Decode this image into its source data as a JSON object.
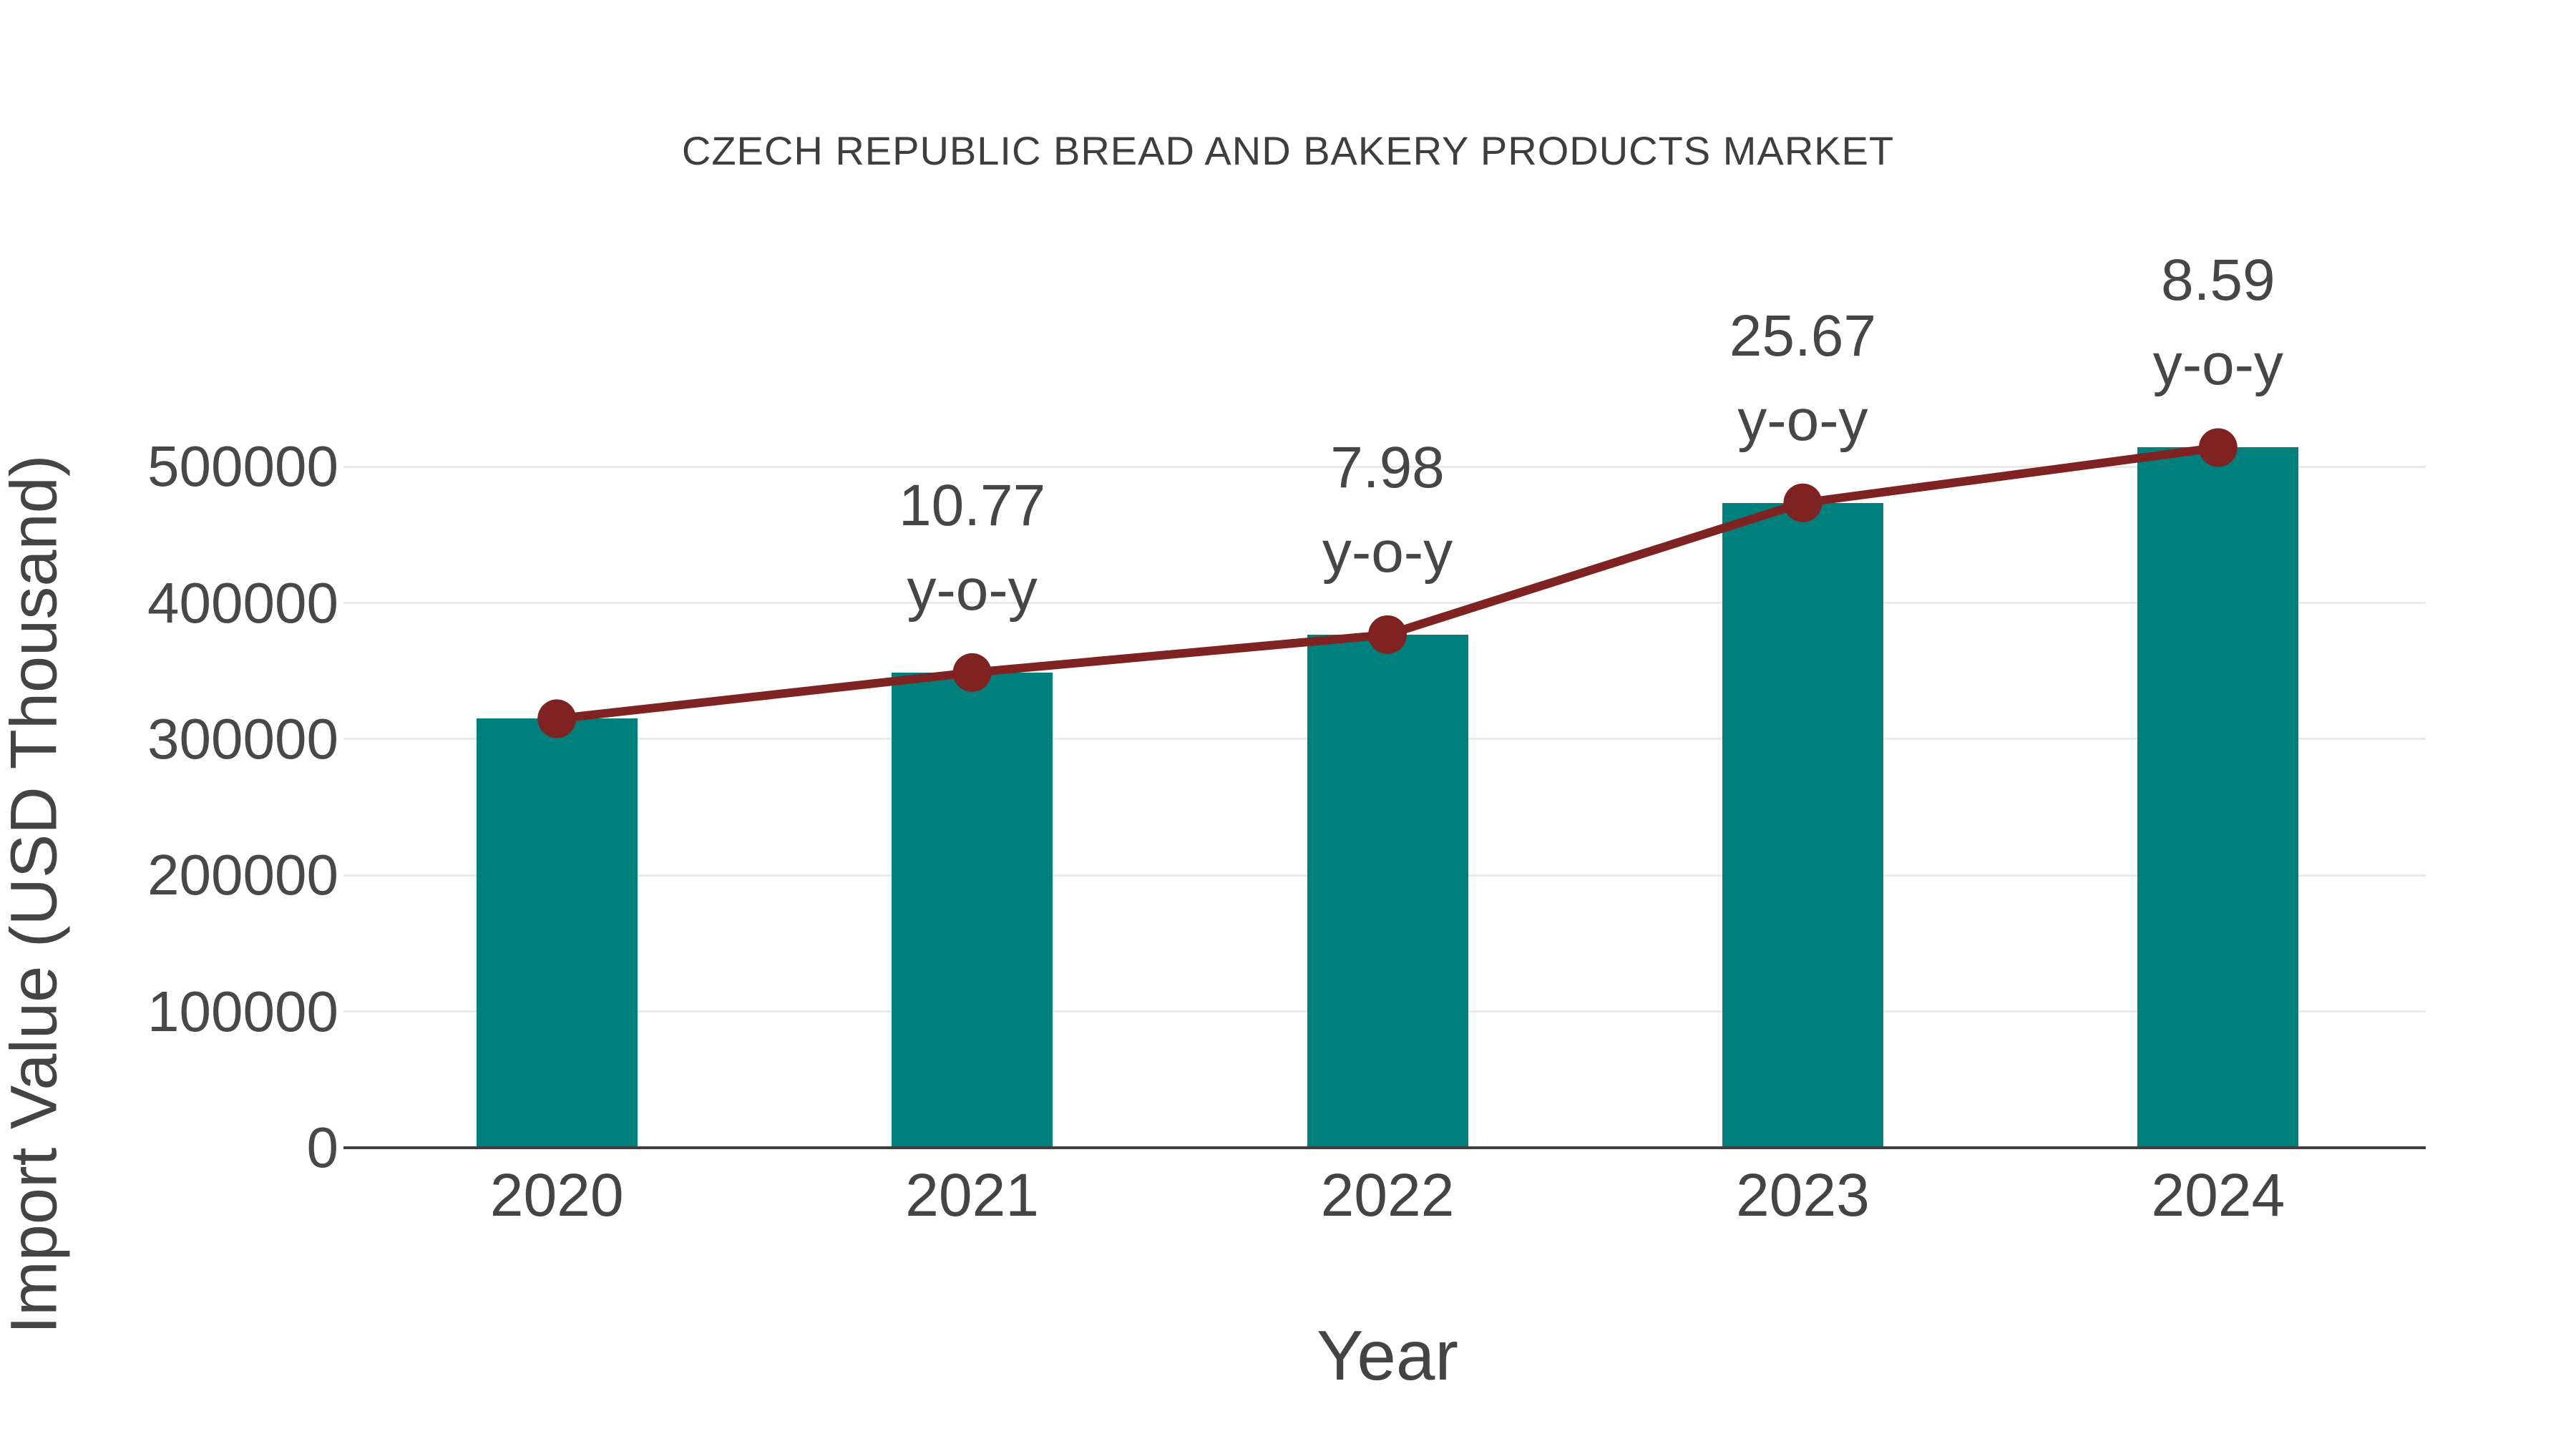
{
  "chart_data": {
    "type": "bar",
    "title": "CZECH REPUBLIC BREAD AND BAKERY PRODUCTS MARKET",
    "xlabel": "Year",
    "ylabel": "Import Value (USD Thousand)",
    "categories": [
      "2020",
      "2021",
      "2022",
      "2023",
      "2024"
    ],
    "series": [
      {
        "name": "import-value-bars",
        "type": "bar",
        "color": "#00807C",
        "values": [
          315000,
          348900,
          376700,
          473500,
          514100
        ]
      },
      {
        "name": "trend-line",
        "type": "line",
        "color": "#7E2222",
        "marker_color": "#7E2222",
        "values": [
          315000,
          348900,
          376700,
          473500,
          514100
        ]
      }
    ],
    "annotations": [
      {
        "category": "2021",
        "text_lines": [
          "10.77",
          "y-o-y"
        ]
      },
      {
        "category": "2022",
        "text_lines": [
          "7.98",
          "y-o-y"
        ]
      },
      {
        "category": "2023",
        "text_lines": [
          "25.67",
          "y-o-y"
        ]
      },
      {
        "category": "2024",
        "text_lines": [
          "8.59",
          "y-o-y"
        ]
      }
    ],
    "yticks": [
      0,
      100000,
      200000,
      300000,
      400000,
      500000
    ],
    "ylim": [
      0,
      559000
    ],
    "grid": true,
    "legend": "none",
    "grid_color": "#e9e9e9",
    "axis_color": "#3f3f3f",
    "text_color": "#444444",
    "background_color": "#ffffff"
  }
}
